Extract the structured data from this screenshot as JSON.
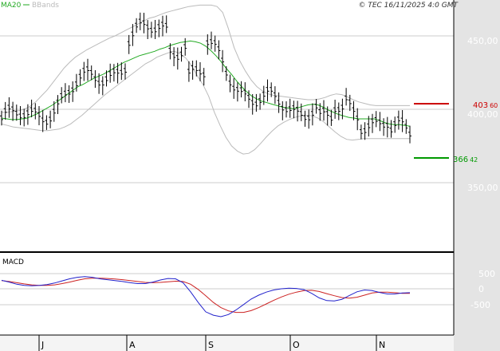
{
  "header": {
    "ma_label": "MA20",
    "bbands_label": "BBands",
    "copyright": "© TEC 16/11/2025 4:0 GMT"
  },
  "colors": {
    "ma20": "#22aa22",
    "bbands": "#bbbbbb",
    "bars": "#000000",
    "resistance": "#cc0000",
    "support": "#009900",
    "macd": "#2222cc",
    "signal": "#cc2222",
    "grid": "#cccccc",
    "panel_bg": "#ffffff",
    "outer_bg": "#e4e4e4"
  },
  "levels": {
    "resistance": {
      "value": 403.6,
      "label_int": "403",
      "label_dec": "60"
    },
    "support": {
      "value": 366.42,
      "label_int": "366",
      "label_dec": "42"
    }
  },
  "chart_data": {
    "type": "line",
    "x_labels": [
      "J",
      "A",
      "S",
      "O",
      "N"
    ],
    "price_axis": {
      "ticks": [
        "450,00",
        "400,00",
        "350,00"
      ],
      "tick_values": [
        450,
        400,
        350
      ],
      "range": [
        325,
        475
      ]
    },
    "macd_axis": {
      "ticks": [
        "500",
        "0",
        "-500"
      ],
      "tick_values": [
        500,
        0,
        -500
      ]
    },
    "macd_label": "MACD",
    "series": [
      {
        "name": "MA20",
        "values": [
          394,
          393.5,
          393,
          393,
          393.5,
          394,
          395.5,
          397,
          399,
          401,
          403,
          405.5,
          408,
          410.5,
          413,
          415.5,
          417,
          419,
          421,
          422.5,
          424,
          426,
          428,
          430,
          432,
          433.5,
          435,
          436.5,
          437.5,
          438.5,
          439.5,
          441,
          442,
          443.5,
          444.5,
          445.5,
          446,
          446.5,
          446,
          445,
          443,
          440,
          436.5,
          432.5,
          428,
          424,
          419.5,
          415.5,
          412,
          409,
          407,
          405.5,
          404.5,
          403.5,
          402.5,
          401.5,
          401,
          400.5,
          401,
          402,
          403,
          403.5,
          403,
          401.5,
          399.5,
          398,
          396.5,
          395.5,
          394.5,
          394,
          393.5,
          393.5,
          393.5,
          393.5,
          392.5,
          391,
          390,
          389.5,
          389.5,
          389,
          388.5
        ]
      },
      {
        "name": "BBands upper",
        "values": [
          398,
          398,
          398.5,
          399,
          400,
          402,
          405,
          409,
          413,
          418,
          423,
          428,
          432,
          435.5,
          438,
          440.5,
          442.5,
          444.5,
          446.5,
          448.5,
          450,
          452,
          454,
          456,
          458,
          460,
          462,
          463,
          464.5,
          466,
          467,
          468,
          469,
          470,
          470.5,
          471,
          471,
          471,
          470,
          466,
          455,
          442,
          433,
          426,
          420,
          415.5,
          412.5,
          410.5,
          409.5,
          409,
          408.5,
          408,
          407.5,
          407,
          406.5,
          406.5,
          407,
          408,
          409.5,
          410.5,
          410,
          408.5,
          406.5,
          405,
          404,
          403,
          402.5,
          402.5,
          402.5,
          402.5,
          402.5,
          402.5,
          402.5
        ]
      },
      {
        "name": "BBands lower",
        "values": [
          390,
          389,
          388,
          387.5,
          387,
          386.5,
          386,
          385.5,
          385.5,
          386,
          386.5,
          388,
          390,
          393,
          396,
          399.5,
          403,
          406.5,
          410,
          413,
          416,
          419,
          422,
          425,
          428,
          431,
          433,
          435.5,
          437,
          438.5,
          439.5,
          438,
          435,
          430,
          423,
          417,
          409,
          398,
          389,
          381,
          375,
          371.5,
          369.5,
          370,
          372.5,
          376.5,
          381,
          385,
          388.5,
          391,
          393,
          394.5,
          395.5,
          396,
          395.5,
          394,
          391.5,
          388,
          384.5,
          381.5,
          379.5,
          379,
          379.5,
          380,
          380,
          380,
          380,
          380,
          380,
          380,
          380,
          380
        ]
      },
      {
        "name": "MACD",
        "values": [
          280,
          220,
          150,
          110,
          100,
          110,
          140,
          190,
          260,
          330,
          380,
          400,
          380,
          330,
          300,
          270,
          240,
          200,
          170,
          170,
          220,
          290,
          340,
          330,
          200,
          -100,
          -450,
          -760,
          -870,
          -920,
          -850,
          -700,
          -520,
          -340,
          -210,
          -110,
          -40,
          0,
          20,
          10,
          -30,
          -150,
          -300,
          -390,
          -400,
          -350,
          -220,
          -100,
          -40,
          -60,
          -120,
          -170,
          -170,
          -140,
          -130
        ]
      },
      {
        "name": "Signal",
        "values": [
          270,
          240,
          200,
          160,
          130,
          110,
          110,
          130,
          170,
          220,
          280,
          330,
          350,
          350,
          340,
          320,
          300,
          270,
          240,
          210,
          200,
          210,
          230,
          250,
          240,
          150,
          -20,
          -230,
          -450,
          -620,
          -730,
          -780,
          -780,
          -720,
          -620,
          -500,
          -380,
          -270,
          -180,
          -110,
          -60,
          -50,
          -90,
          -160,
          -230,
          -290,
          -310,
          -280,
          -210,
          -140,
          -110,
          -110,
          -130,
          -150,
          -150
        ]
      }
    ]
  }
}
